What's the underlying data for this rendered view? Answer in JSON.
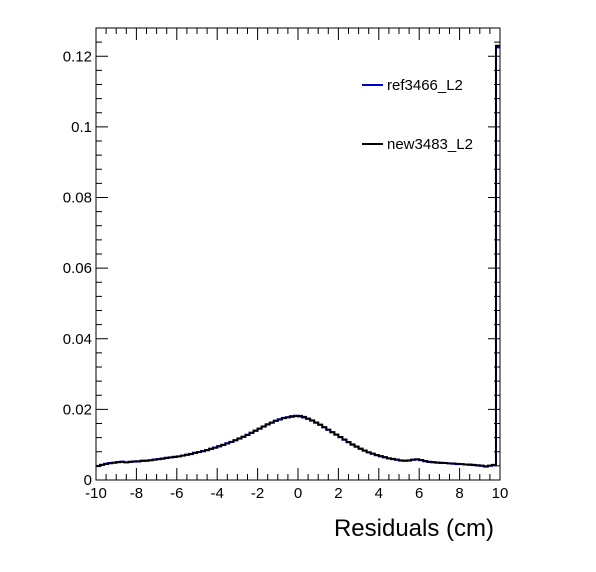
{
  "chart_data": {
    "type": "line",
    "style": "step-histogram",
    "title": "",
    "xlabel": "Residuals (cm)",
    "ylabel": "",
    "xlim": [
      -10,
      10
    ],
    "ylim": [
      0,
      0.128
    ],
    "x_ticks": [
      -10,
      -8,
      -6,
      -4,
      -2,
      0,
      2,
      4,
      6,
      8,
      10
    ],
    "x_tick_labels": [
      "-10",
      "-8",
      "-6",
      "-4",
      "-2",
      "0",
      "2",
      "4",
      "6",
      "8",
      "10"
    ],
    "y_ticks": [
      0,
      0.02,
      0.04,
      0.06,
      0.08,
      0.1,
      0.12
    ],
    "y_tick_labels": [
      "0",
      "0.02",
      "0.04",
      "0.06",
      "0.08",
      "0.1",
      "0.12"
    ],
    "grid": false,
    "legend_position": "top-right",
    "bin_width": 0.2,
    "bins": [
      -9.8,
      -9.6,
      -9.4,
      -9.2,
      -9.0,
      -8.8,
      -8.6,
      -8.4,
      -8.2,
      -8.0,
      -7.8,
      -7.6,
      -7.4,
      -7.2,
      -7.0,
      -6.8,
      -6.6,
      -6.4,
      -6.2,
      -6.0,
      -5.8,
      -5.6,
      -5.4,
      -5.2,
      -5.0,
      -4.8,
      -4.6,
      -4.4,
      -4.2,
      -4.0,
      -3.8,
      -3.6,
      -3.4,
      -3.2,
      -3.0,
      -2.8,
      -2.6,
      -2.4,
      -2.2,
      -2.0,
      -1.8,
      -1.6,
      -1.4,
      -1.2,
      -1.0,
      -0.8,
      -0.6,
      -0.4,
      -0.2,
      0.0,
      0.2,
      0.4,
      0.6,
      0.8,
      1.0,
      1.2,
      1.4,
      1.6,
      1.8,
      2.0,
      2.2,
      2.4,
      2.6,
      2.8,
      3.0,
      3.2,
      3.4,
      3.6,
      3.8,
      4.0,
      4.2,
      4.4,
      4.6,
      4.8,
      5.0,
      5.2,
      5.4,
      5.6,
      5.8,
      6.0,
      6.2,
      6.4,
      6.6,
      6.8,
      7.0,
      7.2,
      7.4,
      7.6,
      7.8,
      8.0,
      8.2,
      8.4,
      8.6,
      8.8,
      9.0,
      9.2,
      9.4,
      9.6,
      9.8,
      10.0
    ],
    "series": [
      {
        "name": "ref3466_L2",
        "color": "#0000cc",
        "values": [
          0.004,
          0.0043,
          0.0046,
          0.0048,
          0.0049,
          0.0051,
          0.0052,
          0.005,
          0.0051,
          0.0052,
          0.0053,
          0.0055,
          0.0054,
          0.0056,
          0.0058,
          0.0059,
          0.0061,
          0.0063,
          0.0064,
          0.0066,
          0.0067,
          0.0069,
          0.0072,
          0.0074,
          0.0077,
          0.0079,
          0.0082,
          0.0085,
          0.0089,
          0.0092,
          0.0096,
          0.01,
          0.0104,
          0.0108,
          0.0113,
          0.0118,
          0.0123,
          0.0128,
          0.0134,
          0.014,
          0.0146,
          0.0152,
          0.0158,
          0.0163,
          0.0168,
          0.0172,
          0.0176,
          0.0178,
          0.0181,
          0.0182,
          0.018,
          0.0177,
          0.0173,
          0.0168,
          0.0162,
          0.0156,
          0.0149,
          0.0142,
          0.0135,
          0.0128,
          0.0121,
          0.0114,
          0.0107,
          0.01,
          0.0094,
          0.0088,
          0.0083,
          0.0078,
          0.0074,
          0.007,
          0.0067,
          0.0064,
          0.0061,
          0.0059,
          0.0057,
          0.0055,
          0.0054,
          0.0055,
          0.0057,
          0.0058,
          0.0056,
          0.0053,
          0.0051,
          0.005,
          0.0049,
          0.0048,
          0.0048,
          0.0047,
          0.0046,
          0.0045,
          0.0045,
          0.0044,
          0.0043,
          0.0042,
          0.0041,
          0.004,
          0.0038,
          0.004,
          0.0042,
          0.1225
        ]
      },
      {
        "name": "new3483_L2",
        "color": "#000000",
        "values": [
          0.0039,
          0.0043,
          0.0045,
          0.0047,
          0.0049,
          0.005,
          0.0051,
          0.005,
          0.0052,
          0.0053,
          0.0052,
          0.0054,
          0.0055,
          0.0056,
          0.0057,
          0.0059,
          0.006,
          0.0062,
          0.0064,
          0.0065,
          0.0067,
          0.0069,
          0.0071,
          0.0073,
          0.0076,
          0.0079,
          0.0081,
          0.0084,
          0.0088,
          0.0091,
          0.0095,
          0.0099,
          0.0103,
          0.0108,
          0.0112,
          0.0117,
          0.0122,
          0.0127,
          0.0133,
          0.0139,
          0.0145,
          0.0151,
          0.0157,
          0.0162,
          0.0167,
          0.0171,
          0.0175,
          0.0177,
          0.0179,
          0.0181,
          0.0182,
          0.0179,
          0.0174,
          0.0169,
          0.0163,
          0.0157,
          0.015,
          0.0143,
          0.0136,
          0.0129,
          0.0122,
          0.0115,
          0.0108,
          0.0101,
          0.0095,
          0.0089,
          0.0084,
          0.0079,
          0.0075,
          0.0071,
          0.0068,
          0.0065,
          0.0062,
          0.006,
          0.0058,
          0.0056,
          0.0055,
          0.0056,
          0.0058,
          0.0059,
          0.0057,
          0.0054,
          0.0052,
          0.0051,
          0.005,
          0.0049,
          0.0048,
          0.0047,
          0.0047,
          0.0046,
          0.0045,
          0.0044,
          0.0044,
          0.0043,
          0.0042,
          0.0041,
          0.0039,
          0.0041,
          0.0043,
          0.123
        ]
      }
    ]
  }
}
